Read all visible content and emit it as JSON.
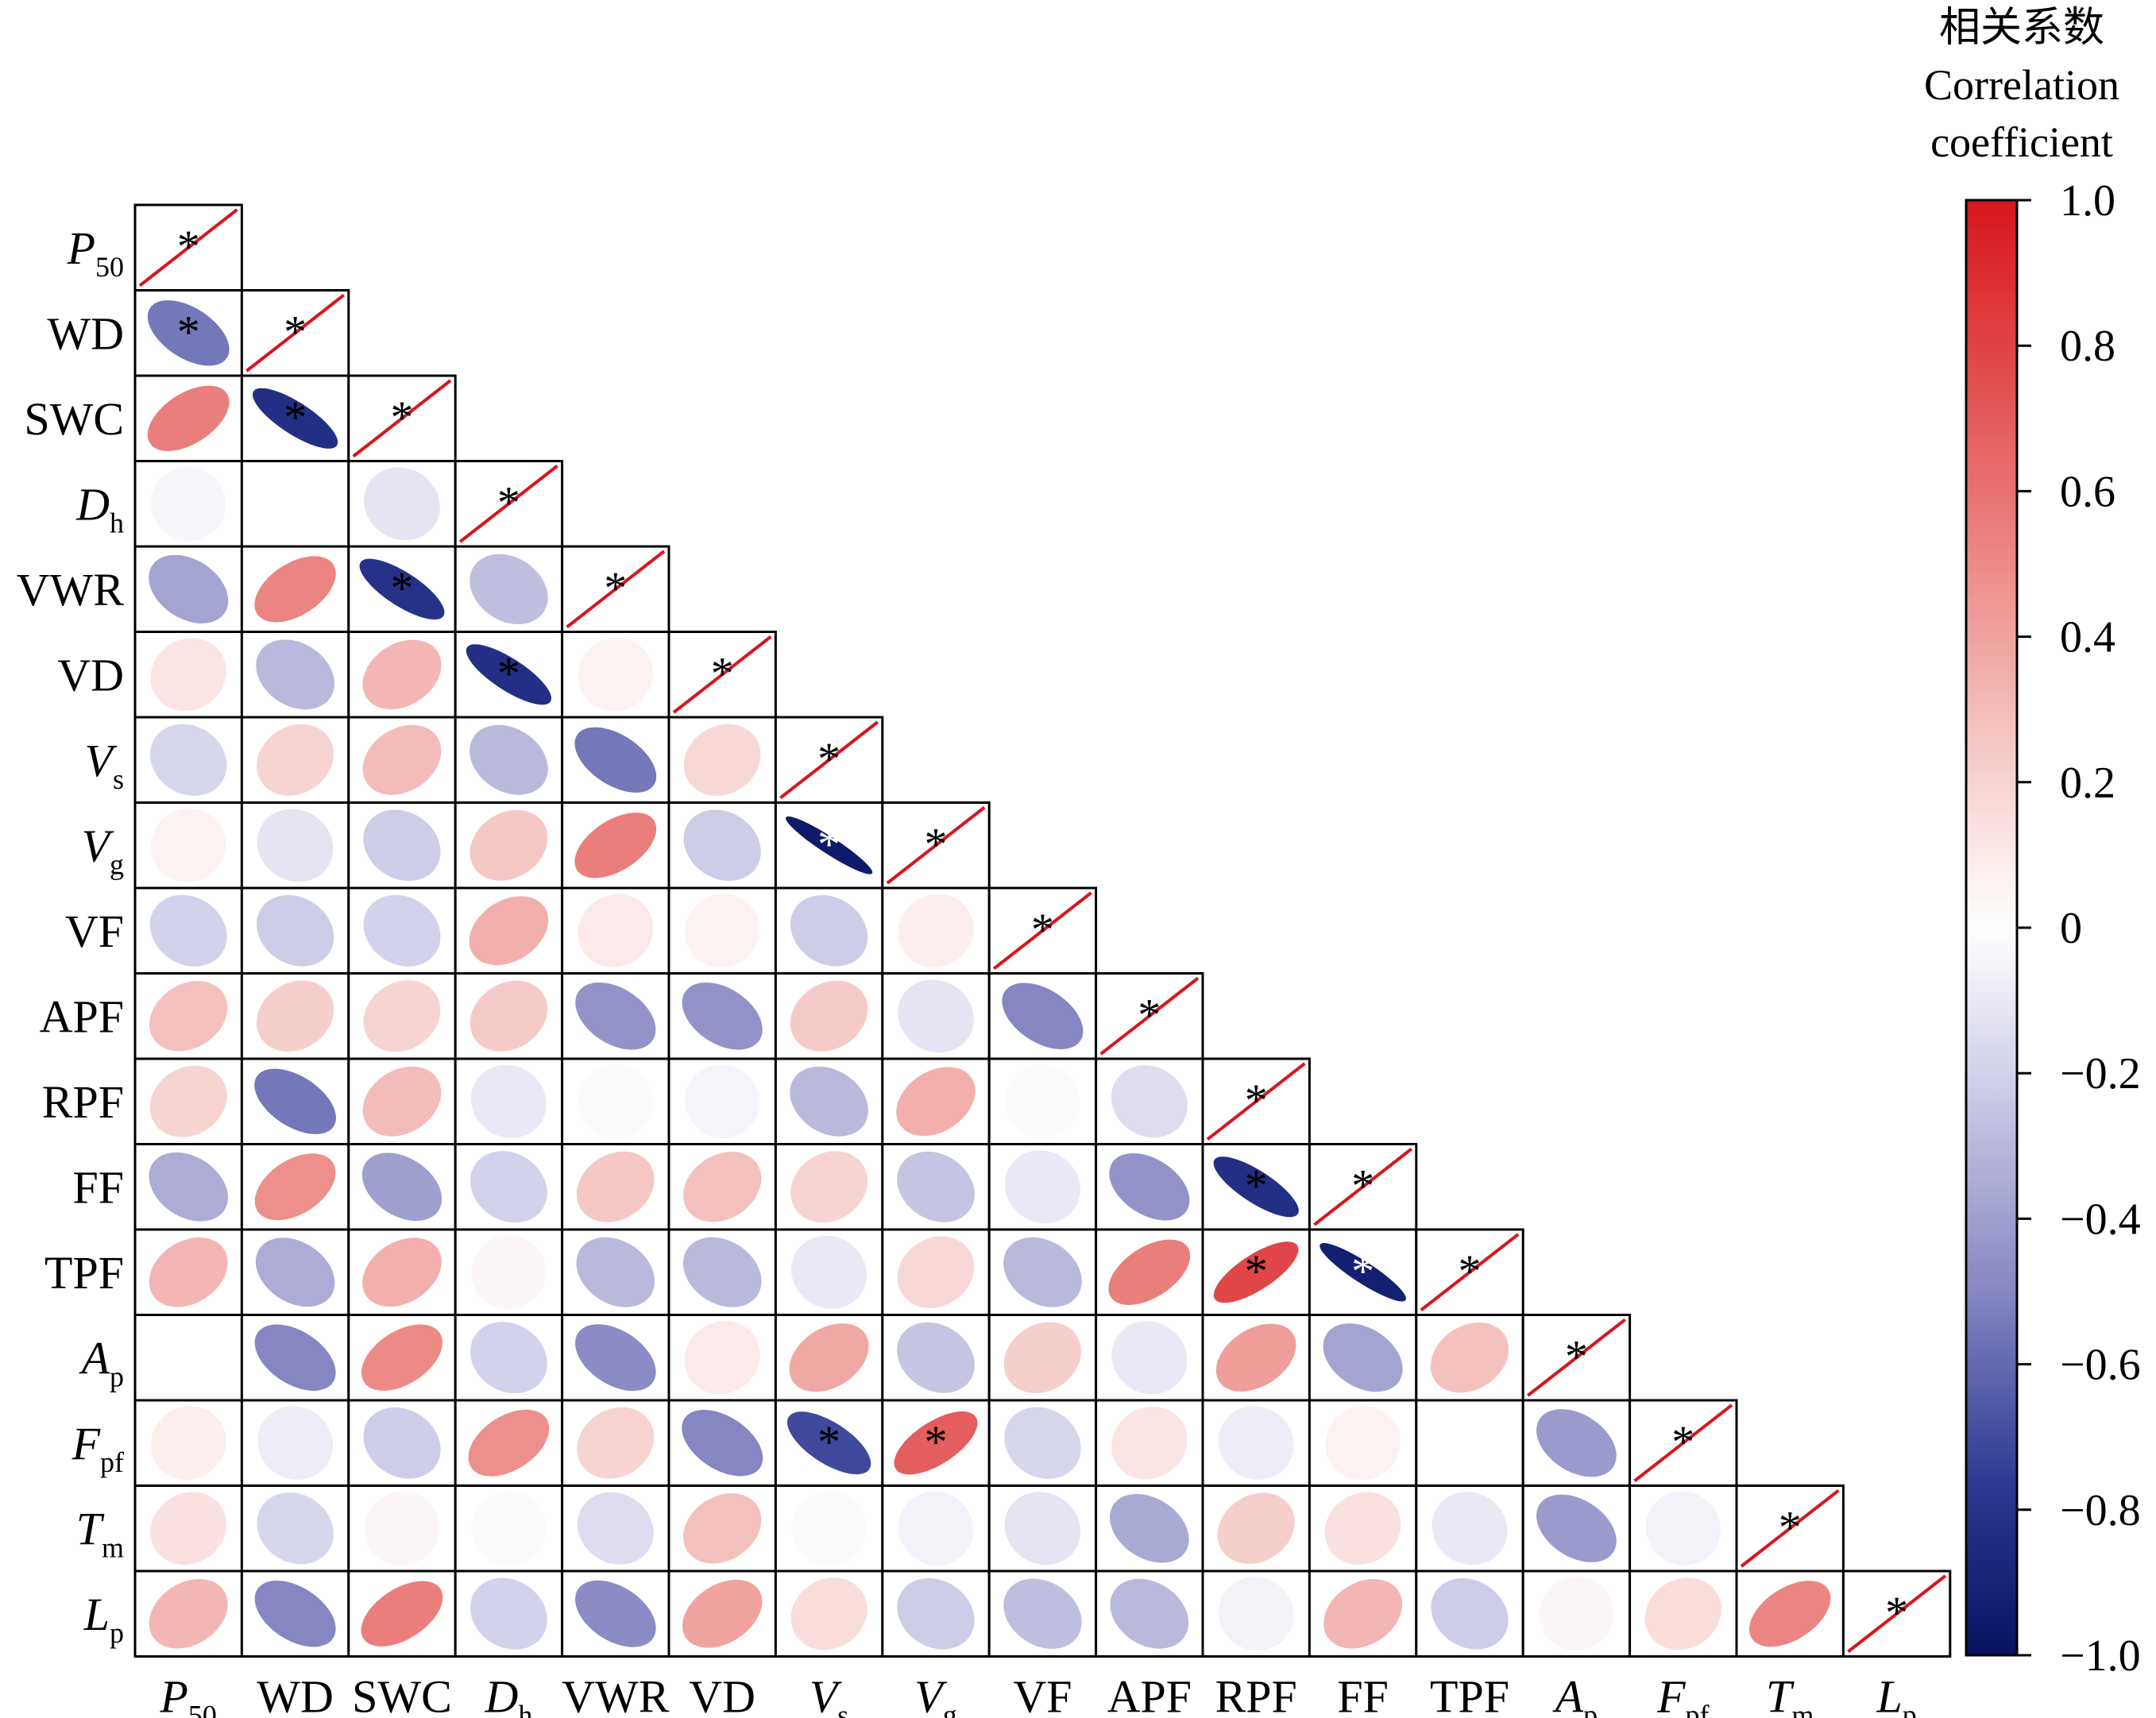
{
  "chart_data": {
    "type": "heatmap",
    "variables": [
      {
        "main": "P",
        "sub": "50",
        "italic": true
      },
      {
        "main": "WD",
        "sub": "",
        "italic": false
      },
      {
        "main": "SWC",
        "sub": "",
        "italic": false
      },
      {
        "main": "D",
        "sub": "h",
        "italic": true
      },
      {
        "main": "VWR",
        "sub": "",
        "italic": false
      },
      {
        "main": "VD",
        "sub": "",
        "italic": false
      },
      {
        "main": "V",
        "sub": "s",
        "italic": true
      },
      {
        "main": "V",
        "sub": "g",
        "italic": true
      },
      {
        "main": "VF",
        "sub": "",
        "italic": false
      },
      {
        "main": "APF",
        "sub": "",
        "italic": false
      },
      {
        "main": "RPF",
        "sub": "",
        "italic": false
      },
      {
        "main": "FF",
        "sub": "",
        "italic": false
      },
      {
        "main": "TPF",
        "sub": "",
        "italic": false
      },
      {
        "main": "A",
        "sub": "p",
        "italic": true
      },
      {
        "main": "F",
        "sub": "pf",
        "italic": true
      },
      {
        "main": "T",
        "sub": "m",
        "italic": true
      },
      {
        "main": "L",
        "sub": "p",
        "italic": true
      }
    ],
    "correlations": [
      [
        1.0
      ],
      [
        -0.55,
        1.0
      ],
      [
        0.55,
        -0.82,
        1.0
      ],
      [
        -0.04,
        0.0,
        -0.12,
        1.0
      ],
      [
        -0.38,
        0.52,
        -0.8,
        -0.28,
        1.0
      ],
      [
        0.12,
        -0.3,
        0.32,
        -0.82,
        0.06,
        1.0
      ],
      [
        -0.18,
        0.2,
        0.3,
        -0.3,
        -0.55,
        0.18,
        1.0
      ],
      [
        0.06,
        -0.12,
        -0.22,
        0.25,
        0.55,
        -0.22,
        -0.95,
        1.0
      ],
      [
        -0.2,
        -0.22,
        -0.2,
        0.35,
        0.1,
        0.06,
        -0.22,
        0.08,
        1.0
      ],
      [
        0.28,
        0.22,
        0.2,
        0.24,
        -0.45,
        -0.45,
        0.24,
        -0.12,
        -0.5,
        1.0
      ],
      [
        0.2,
        -0.55,
        0.3,
        -0.1,
        -0.02,
        -0.05,
        -0.3,
        0.35,
        -0.02,
        -0.15,
        1.0
      ],
      [
        -0.35,
        0.48,
        -0.4,
        -0.2,
        0.25,
        0.28,
        0.2,
        -0.25,
        -0.1,
        -0.45,
        -0.82,
        1.0
      ],
      [
        0.32,
        -0.35,
        0.35,
        0.04,
        -0.3,
        -0.3,
        -0.1,
        0.18,
        -0.3,
        0.55,
        0.78,
        -0.92,
        1.0
      ],
      [
        0.0,
        -0.5,
        0.5,
        -0.2,
        -0.48,
        0.1,
        0.38,
        -0.25,
        0.22,
        -0.1,
        0.42,
        -0.38,
        0.28,
        1.0
      ],
      [
        0.08,
        -0.08,
        -0.22,
        0.48,
        0.2,
        -0.5,
        -0.7,
        0.68,
        -0.18,
        0.12,
        -0.08,
        0.06,
        0.0,
        -0.42,
        1.0
      ],
      [
        0.14,
        -0.18,
        0.04,
        -0.02,
        -0.15,
        0.28,
        -0.02,
        -0.06,
        -0.12,
        -0.36,
        0.22,
        0.14,
        -0.1,
        -0.42,
        -0.06,
        1.0
      ],
      [
        0.32,
        -0.5,
        0.55,
        -0.2,
        -0.48,
        0.4,
        0.16,
        -0.22,
        -0.28,
        -0.3,
        -0.06,
        0.32,
        -0.22,
        0.04,
        0.16,
        0.52,
        1.0
      ]
    ],
    "significant": [
      [
        true
      ],
      [
        true,
        true
      ],
      [
        false,
        true,
        true
      ],
      [
        false,
        false,
        false,
        true
      ],
      [
        false,
        false,
        true,
        false,
        true
      ],
      [
        false,
        false,
        false,
        true,
        false,
        true
      ],
      [
        false,
        false,
        false,
        false,
        false,
        false,
        true
      ],
      [
        false,
        false,
        false,
        false,
        false,
        false,
        true,
        true
      ],
      [
        false,
        false,
        false,
        false,
        false,
        false,
        false,
        false,
        true
      ],
      [
        false,
        false,
        false,
        false,
        false,
        false,
        false,
        false,
        false,
        true
      ],
      [
        false,
        false,
        false,
        false,
        false,
        false,
        false,
        false,
        false,
        false,
        true
      ],
      [
        false,
        false,
        false,
        false,
        false,
        false,
        false,
        false,
        false,
        false,
        true,
        true
      ],
      [
        false,
        false,
        false,
        false,
        false,
        false,
        false,
        false,
        false,
        false,
        true,
        true,
        true
      ],
      [
        false,
        false,
        false,
        false,
        false,
        false,
        false,
        false,
        false,
        false,
        false,
        false,
        false,
        true
      ],
      [
        false,
        false,
        false,
        false,
        false,
        false,
        true,
        true,
        false,
        false,
        false,
        false,
        false,
        false,
        true
      ],
      [
        false,
        false,
        false,
        false,
        false,
        false,
        false,
        false,
        false,
        false,
        false,
        false,
        false,
        false,
        false,
        true
      ],
      [
        false,
        false,
        false,
        false,
        false,
        false,
        false,
        false,
        false,
        false,
        false,
        false,
        false,
        false,
        false,
        false,
        true
      ]
    ],
    "colorbar": {
      "title_lines": [
        "相关系数",
        "Correlation",
        "coefficient"
      ],
      "ticks": [
        "1.0",
        "0.8",
        "0.6",
        "0.4",
        "0.2",
        "0",
        "−0.2",
        "−0.4",
        "−0.6",
        "−0.8",
        "−1.0"
      ],
      "tick_values": [
        1.0,
        0.8,
        0.6,
        0.4,
        0.2,
        0,
        -0.2,
        -0.4,
        -0.6,
        -0.8,
        -1.0
      ],
      "range": [
        -1.0,
        1.0
      ]
    },
    "significance_marker": "*",
    "colors": {
      "negative": "#061360",
      "neutral": "#ffffff",
      "positive": "#d7161d",
      "diagonal_line": "#d7161d"
    }
  }
}
